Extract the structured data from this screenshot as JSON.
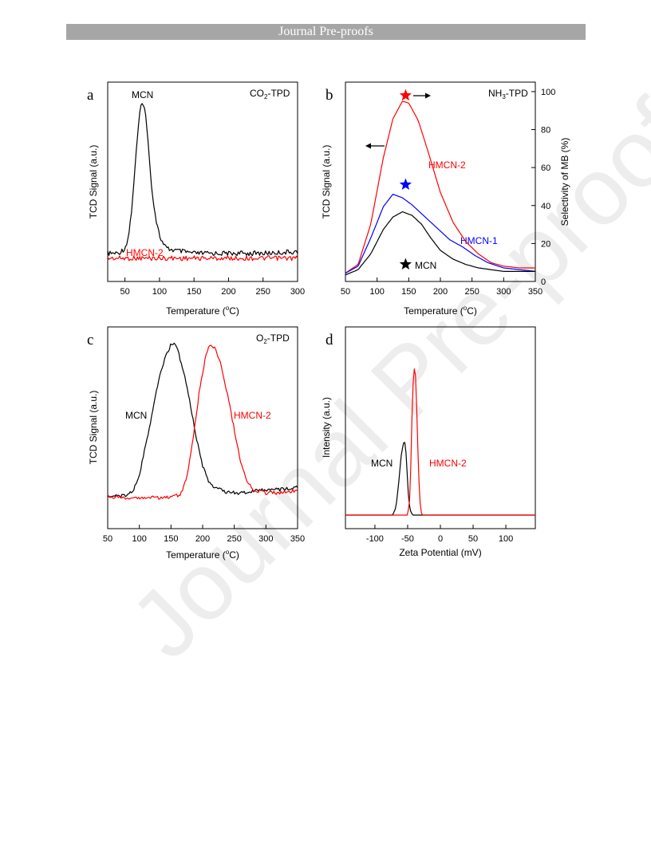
{
  "header": {
    "banner": "Journal Pre-proofs"
  },
  "watermark": "Journal Pre-proofs",
  "colors": {
    "black": "#000000",
    "red": "#ff0000",
    "blue": "#0000ff",
    "banner": "#a6a6a6"
  },
  "chart_data": [
    {
      "panel": "a",
      "type": "line",
      "title": "CO2-TPD",
      "xlabel": "Temperature (°C)",
      "ylabel": "TCD Signal (a.u.)",
      "xlim": [
        25,
        300
      ],
      "xticks": [
        50,
        100,
        150,
        200,
        250,
        300
      ],
      "series": [
        {
          "name": "MCN",
          "color": "#000000",
          "x": [
            25,
            40,
            50,
            55,
            60,
            65,
            70,
            73,
            76,
            79,
            82,
            86,
            90,
            95,
            100,
            105,
            110,
            120,
            150,
            200,
            250,
            300
          ],
          "y": [
            0.07,
            0.07,
            0.1,
            0.17,
            0.35,
            0.62,
            0.88,
            0.97,
            1.0,
            0.96,
            0.82,
            0.62,
            0.42,
            0.28,
            0.18,
            0.13,
            0.1,
            0.09,
            0.07,
            0.07,
            0.07,
            0.08
          ]
        },
        {
          "name": "HMCN-2",
          "color": "#ff0000",
          "x": [
            25,
            300
          ],
          "y": [
            0.04,
            0.04
          ]
        }
      ]
    },
    {
      "panel": "b",
      "type": "line",
      "title": "NH3-TPD",
      "xlabel": "Temperature (°C)",
      "ylabel": "TCD Signal (a.u.)",
      "y2label": "Selectivity of MB (%)",
      "xlim": [
        50,
        350
      ],
      "xticks": [
        50,
        100,
        150,
        200,
        250,
        300,
        350
      ],
      "y2lim": [
        0,
        105
      ],
      "y2ticks": [
        0,
        20,
        40,
        60,
        80,
        100
      ],
      "series": [
        {
          "name": "HMCN-2",
          "color": "#ff0000",
          "x": [
            50,
            70,
            90,
            110,
            125,
            140,
            150,
            165,
            180,
            200,
            220,
            240,
            260,
            280,
            300,
            325,
            350
          ],
          "y": [
            0.02,
            0.07,
            0.3,
            0.68,
            0.9,
            1.0,
            0.99,
            0.89,
            0.72,
            0.48,
            0.31,
            0.2,
            0.13,
            0.08,
            0.06,
            0.05,
            0.05
          ]
        },
        {
          "name": "HMCN-1",
          "color": "#0000ff",
          "x": [
            50,
            70,
            90,
            110,
            125,
            140,
            155,
            170,
            185,
            200,
            215,
            235,
            255,
            275,
            300,
            325,
            350
          ],
          "y": [
            0.02,
            0.06,
            0.22,
            0.4,
            0.47,
            0.45,
            0.41,
            0.36,
            0.31,
            0.26,
            0.21,
            0.17,
            0.12,
            0.08,
            0.05,
            0.04,
            0.03
          ]
        },
        {
          "name": "MCN",
          "color": "#000000",
          "x": [
            50,
            70,
            90,
            110,
            125,
            140,
            155,
            170,
            185,
            200,
            220,
            240,
            260,
            280,
            300,
            325,
            350
          ],
          "y": [
            0.01,
            0.04,
            0.13,
            0.27,
            0.34,
            0.37,
            0.35,
            0.3,
            0.22,
            0.15,
            0.1,
            0.07,
            0.05,
            0.04,
            0.03,
            0.03,
            0.03
          ]
        }
      ],
      "selectivity_points": [
        {
          "name": "HMCN-2",
          "x": 145,
          "y": 98,
          "color": "#ff0000"
        },
        {
          "name": "HMCN-1",
          "x": 145,
          "y": 51,
          "color": "#0000ff"
        },
        {
          "name": "MCN",
          "x": 145,
          "y": 9,
          "color": "#000000"
        }
      ]
    },
    {
      "panel": "c",
      "type": "line",
      "title": "O2-TPD",
      "xlabel": "Temperature (°C)",
      "ylabel": "TCD Signal (a.u.)",
      "xlim": [
        50,
        350
      ],
      "xticks": [
        50,
        100,
        150,
        200,
        250,
        300,
        350
      ],
      "series": [
        {
          "name": "MCN",
          "color": "#000000",
          "x": [
            50,
            80,
            90,
            100,
            110,
            120,
            130,
            140,
            150,
            155,
            160,
            170,
            180,
            190,
            200,
            210,
            220,
            240,
            260,
            280,
            300,
            320,
            340,
            350
          ],
          "y": [
            0.03,
            0.03,
            0.06,
            0.16,
            0.35,
            0.55,
            0.75,
            0.9,
            0.99,
            0.99,
            0.96,
            0.82,
            0.62,
            0.4,
            0.22,
            0.12,
            0.08,
            0.05,
            0.05,
            0.06,
            0.07,
            0.07,
            0.08,
            0.09
          ]
        },
        {
          "name": "HMCN-2",
          "color": "#ff0000",
          "x": [
            50,
            100,
            150,
            165,
            175,
            185,
            195,
            205,
            212,
            220,
            230,
            240,
            250,
            260,
            270,
            280,
            300,
            320,
            340,
            350
          ],
          "y": [
            0.02,
            0.02,
            0.02,
            0.04,
            0.14,
            0.4,
            0.7,
            0.92,
            0.99,
            0.97,
            0.85,
            0.66,
            0.45,
            0.25,
            0.12,
            0.07,
            0.05,
            0.05,
            0.06,
            0.07
          ]
        }
      ]
    },
    {
      "panel": "d",
      "type": "line",
      "xlabel": "Zeta Potential (mV)",
      "ylabel": "Intensity (a.u.)",
      "xlim": [
        -145,
        145
      ],
      "xticks": [
        -100,
        -50,
        0,
        50,
        100
      ],
      "series": [
        {
          "name": "MCN",
          "color": "#000000",
          "x": [
            -145,
            -73,
            -68,
            -64,
            -60,
            -57,
            -55,
            -53,
            -51,
            -49,
            -47,
            -45,
            -42,
            -40,
            -30,
            0,
            145
          ],
          "y": [
            0.0,
            0.0,
            0.05,
            0.2,
            0.4,
            0.48,
            0.51,
            0.46,
            0.3,
            0.15,
            0.06,
            0.02,
            0.0,
            0.0,
            0.0,
            0.0,
            0.0
          ]
        },
        {
          "name": "HMCN-2",
          "color": "#ff0000",
          "x": [
            -145,
            -50,
            -47,
            -45,
            -43,
            -41,
            -40,
            -38,
            -36,
            -34,
            -32,
            -30,
            -28,
            0,
            145
          ],
          "y": [
            0.0,
            0.0,
            0.1,
            0.35,
            0.75,
            0.97,
            1.0,
            0.95,
            0.7,
            0.4,
            0.15,
            0.03,
            0.0,
            0.0,
            0.0
          ]
        }
      ]
    }
  ],
  "labels": {
    "a": {
      "letter": "a",
      "title_main": "CO",
      "title_sub": "2",
      "title_rest": "-TPD",
      "s1": "MCN",
      "s2": "HMCN-2",
      "xlabel_pre": "Temperature (",
      "xlabel_sup": "o",
      "xlabel_post": "C)",
      "ylabel": "TCD Signal (a.u.)"
    },
    "b": {
      "letter": "b",
      "title_main": "NH",
      "title_sub": "3",
      "title_rest": "-TPD",
      "s1": "HMCN-2",
      "s2": "HMCN-1",
      "s3": "MCN",
      "xlabel_pre": "Temperature (",
      "xlabel_sup": "o",
      "xlabel_post": "C)",
      "ylabel": "TCD Signal (a.u.)",
      "y2label": "Selectivity of MB (%)"
    },
    "c": {
      "letter": "c",
      "title_main": "O",
      "title_sub": "2",
      "title_rest": "-TPD",
      "s1": "MCN",
      "s2": "HMCN-2",
      "xlabel_pre": "Temperature (",
      "xlabel_sup": "o",
      "xlabel_post": "C)",
      "ylabel": "TCD Signal (a.u.)"
    },
    "d": {
      "letter": "d",
      "s1": "MCN",
      "s2": "HMCN-2",
      "xlabel": "Zeta Potential (mV)",
      "ylabel": "Intensity (a.u.)"
    }
  }
}
